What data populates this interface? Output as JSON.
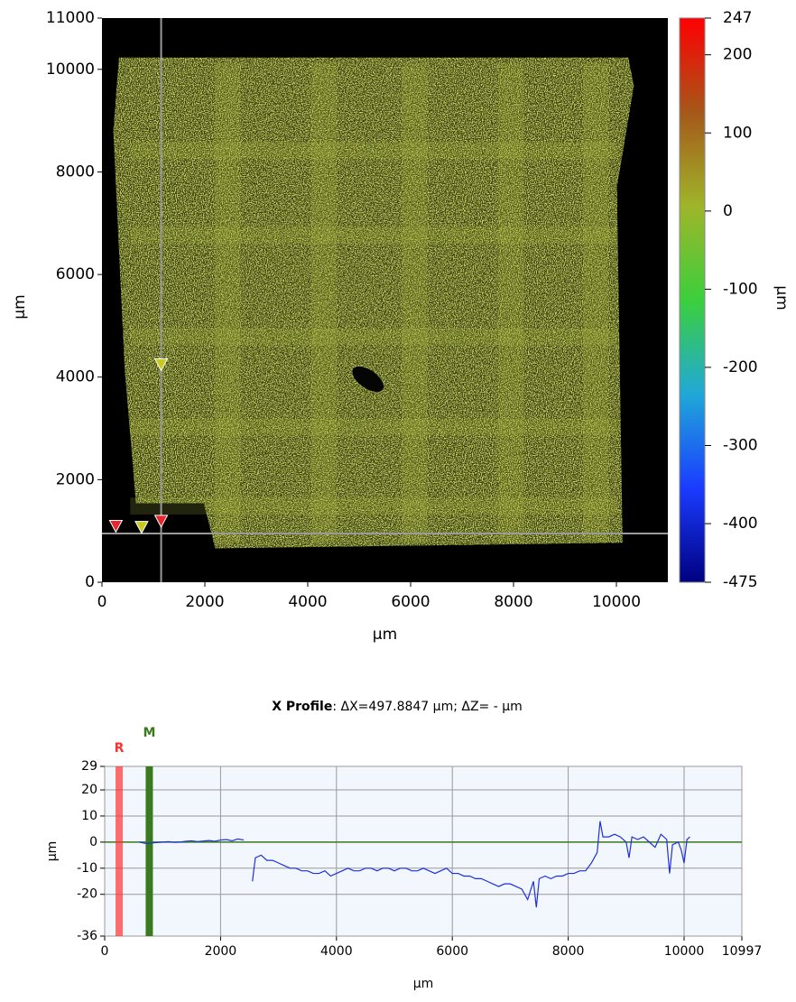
{
  "chart_data": [
    {
      "type": "heatmap",
      "xlabel": "µm",
      "ylabel": "µm",
      "xlim": [
        0,
        11000
      ],
      "ylim": [
        0,
        11000
      ],
      "xticks": [
        0,
        2000,
        4000,
        6000,
        8000,
        10000
      ],
      "yticks": [
        0,
        2000,
        4000,
        6000,
        8000,
        10000,
        11000
      ],
      "colorbar": {
        "label": "µm",
        "lim": [
          -475,
          247
        ],
        "ticks": [
          -475,
          -400,
          -300,
          -200,
          -100,
          0,
          100,
          200,
          247
        ],
        "colormap": [
          "#000080",
          "#1a3cff",
          "#20a8d8",
          "#3ccf3c",
          "#9fb52a",
          "#a5581a",
          "#ff0000"
        ]
      },
      "crosshair": {
        "x": 1150,
        "y": 950
      },
      "markers": [
        {
          "x": 270,
          "y": 1100,
          "color": "#e8262b"
        },
        {
          "x": 770,
          "y": 1080,
          "color": "#c8c820"
        },
        {
          "x": 1150,
          "y": 1200,
          "color": "#e8262b"
        },
        {
          "x": 1150,
          "y": 4250,
          "color": "#c8c820"
        }
      ]
    },
    {
      "type": "line",
      "title": "X Profile",
      "subtitle": ": ΔX=497.8847 µm; ΔZ= -  µm",
      "xlabel": "µm",
      "ylabel": "µm",
      "grid": true,
      "xlim": [
        0,
        10997
      ],
      "ylim": [
        -36,
        29
      ],
      "xticks": [
        0,
        2000,
        4000,
        6000,
        8000,
        10000,
        10997
      ],
      "yticks": [
        -36,
        -20,
        -10,
        0,
        10,
        20,
        29
      ],
      "hline": 0,
      "cursors": [
        {
          "label": "R",
          "x": 250,
          "color": "#ff3030"
        },
        {
          "label": "M",
          "x": 770,
          "color": "#3a7a1e"
        }
      ],
      "x": [
        600,
        700,
        800,
        900,
        1000,
        1100,
        1200,
        1300,
        1400,
        1500,
        1600,
        1700,
        1800,
        1900,
        2000,
        2100,
        2200,
        2300,
        2400,
        2500,
        2550,
        2600,
        2700,
        2800,
        2900,
        3000,
        3100,
        3200,
        3300,
        3400,
        3500,
        3600,
        3700,
        3800,
        3900,
        4000,
        4100,
        4200,
        4300,
        4400,
        4500,
        4600,
        4700,
        4800,
        4900,
        5000,
        5100,
        5200,
        5300,
        5400,
        5500,
        5600,
        5700,
        5800,
        5900,
        6000,
        6100,
        6200,
        6300,
        6400,
        6500,
        6600,
        6700,
        6800,
        6900,
        7000,
        7100,
        7200,
        7300,
        7400,
        7450,
        7500,
        7600,
        7700,
        7800,
        7900,
        8000,
        8100,
        8200,
        8300,
        8400,
        8500,
        8550,
        8600,
        8700,
        8800,
        8900,
        9000,
        9050,
        9100,
        9200,
        9300,
        9400,
        9500,
        9600,
        9700,
        9750,
        9800,
        9900,
        9950,
        10000,
        10050,
        10100
      ],
      "series": [
        {
          "color": "#1f2fe0",
          "values": [
            0,
            -0.5,
            -0.3,
            -0.2,
            0,
            0.2,
            -0.1,
            0,
            0.3,
            0.5,
            0.2,
            0.4,
            0.6,
            0.3,
            0.8,
            1,
            0.5,
            1.2,
            0.8,
            null,
            -15,
            -6,
            -5,
            -7,
            -7,
            -8,
            -9,
            -10,
            -10,
            -11,
            -11,
            -12,
            -12,
            -11,
            -13,
            -12,
            -11,
            -10,
            -11,
            -11,
            -10,
            -10,
            -11,
            -10,
            -10,
            -11,
            -10,
            -10,
            -11,
            -11,
            -10,
            -11,
            -12,
            -11,
            -10,
            -12,
            -12,
            -13,
            -13,
            -14,
            -14,
            -15,
            -16,
            -17,
            -16,
            -16,
            -17,
            -18,
            -22,
            -15,
            -25,
            -14,
            -13,
            -14,
            -13,
            -13,
            -12,
            -12,
            -11,
            -11,
            -8,
            -4,
            8,
            2,
            2,
            3,
            2,
            0,
            -6,
            2,
            1,
            2,
            0,
            -2,
            3,
            1,
            -12,
            -1,
            0,
            -3,
            -8,
            1,
            2
          ]
        }
      ]
    }
  ]
}
